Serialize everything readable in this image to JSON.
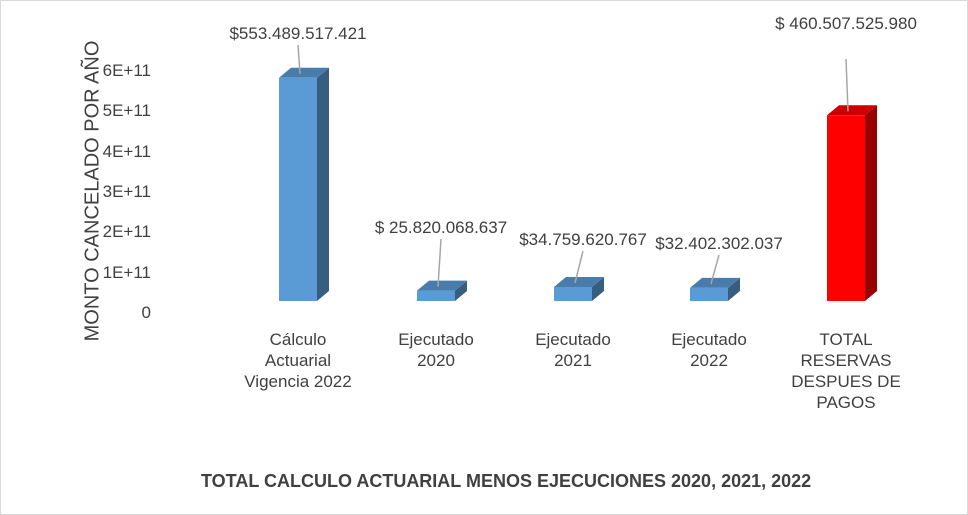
{
  "chart_data": {
    "type": "bar3d",
    "x_axis_title": "TOTAL CALCULO ACTUARIAL MENOS EJECUCIONES 2020, 2021, 2022",
    "y_axis_title": "MONTO CANCELADO POR AÑO",
    "categories": [
      "Cálculo Actuarial Vigencia 2022",
      "Ejecutado 2020",
      "Ejecutado 2021",
      "Ejecutado 2022",
      "TOTAL RESERVAS DESPUES DE PAGOS"
    ],
    "values": [
      553489517421,
      25820068637,
      34759620767,
      32402302037,
      460507525980
    ],
    "value_labels": [
      "$553.489.517.421",
      "$ 25.820.068.637",
      "$34.759.620.767",
      "$32.402.302.037",
      "$ 460.507.525.980"
    ],
    "colors": [
      "#5b9bd5",
      "#5b9bd5",
      "#5b9bd5",
      "#5b9bd5",
      "#ff0000"
    ],
    "ylim": [
      0,
      600000000000
    ],
    "yticks": [
      0,
      {
        "value": 100000000000,
        "label": "1E+11"
      },
      {
        "value": 200000000000,
        "label": "2E+11"
      },
      {
        "value": 300000000000,
        "label": "3E+11"
      },
      {
        "value": 400000000000,
        "label": "4E+11"
      },
      {
        "value": 500000000000,
        "label": "5E+11"
      },
      {
        "value": 600000000000,
        "label": "6E+11"
      }
    ],
    "grid": false
  }
}
